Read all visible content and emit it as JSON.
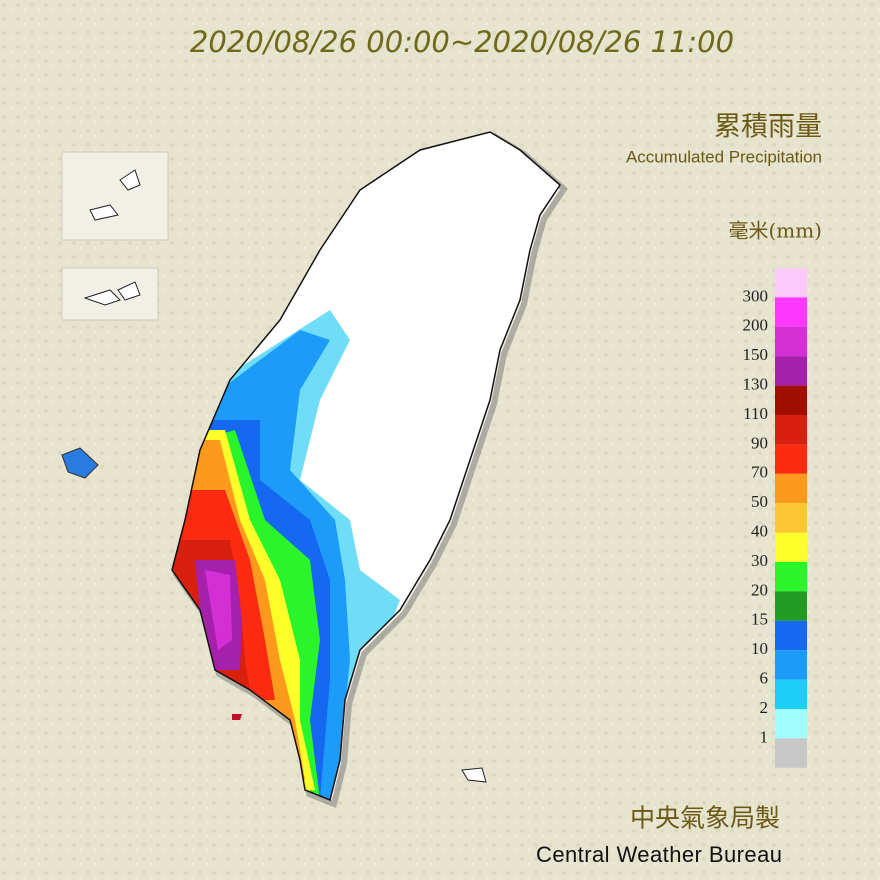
{
  "header": {
    "title": "2020/08/26 00:00~2020/08/26 11:00"
  },
  "legend": {
    "title_zh": "累積雨量",
    "title_en": "Accumulated Precipitation",
    "unit": "毫米(mm)",
    "labels": [
      300,
      200,
      150,
      130,
      110,
      90,
      70,
      50,
      40,
      30,
      20,
      15,
      10,
      6,
      2,
      1
    ],
    "colors": [
      "#fcc9fb",
      "#fb38fb",
      "#d62ed5",
      "#a521ab",
      "#a10f00",
      "#d8200f",
      "#fb2a10",
      "#fd9a1e",
      "#fdc634",
      "#fefe2a",
      "#2af42a",
      "#239b23",
      "#1768f0",
      "#1c9cf8",
      "#1ecdf8",
      "#a0fefe",
      "#c8c8c8"
    ]
  },
  "footer": {
    "zh": "中央氣象局製",
    "en": "Central Weather Bureau"
  }
}
